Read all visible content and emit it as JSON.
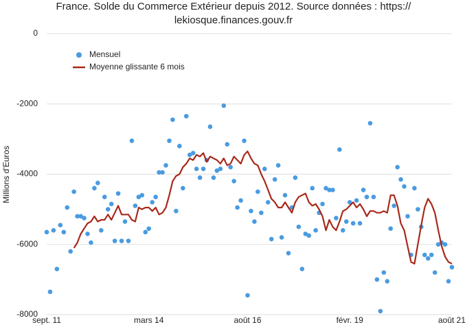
{
  "chart_data": {
    "type": "line",
    "title": "France. Solde du Commerce Extérieur depuis 2012. Source données : https:// lekiosque.finances.gouv.fr",
    "y_label": "Millions d'Euros",
    "categories": [
      "sept. 11",
      null,
      null,
      null,
      null,
      null,
      null,
      null,
      null,
      null,
      null,
      null,
      null,
      null,
      null,
      null,
      null,
      null,
      null,
      null,
      null,
      null,
      null,
      null,
      null,
      null,
      null,
      null,
      null,
      null,
      "mars 14",
      null,
      null,
      null,
      null,
      null,
      null,
      null,
      null,
      null,
      null,
      null,
      null,
      null,
      null,
      null,
      null,
      null,
      null,
      null,
      null,
      null,
      null,
      null,
      null,
      null,
      null,
      null,
      null,
      "août 16",
      null,
      null,
      null,
      null,
      null,
      null,
      null,
      null,
      null,
      null,
      null,
      null,
      null,
      null,
      null,
      null,
      null,
      null,
      null,
      null,
      null,
      null,
      null,
      null,
      null,
      null,
      null,
      null,
      null,
      "févr. 19",
      null,
      null,
      null,
      null,
      null,
      null,
      null,
      null,
      null,
      null,
      null,
      null,
      null,
      null,
      null,
      null,
      null,
      null,
      null,
      null,
      null,
      null,
      null,
      null,
      null,
      null,
      null,
      null,
      null,
      "août 21"
    ],
    "series": [
      {
        "name": "Mensuel",
        "color": "#4a9be0",
        "style": "dots",
        "values": [
          -5650,
          -7350,
          -5600,
          -6700,
          -5450,
          -5650,
          -4950,
          -6200,
          -4500,
          -5200,
          -5200,
          -5250,
          -5700,
          -5950,
          -4400,
          -4250,
          -5600,
          -4650,
          -5000,
          -4850,
          -5900,
          -4550,
          -5900,
          -5350,
          -5900,
          -3050,
          -4900,
          -4650,
          -4600,
          -5650,
          -5550,
          -4800,
          -4650,
          -3950,
          -3950,
          -3750,
          -3050,
          -2450,
          -5050,
          -3200,
          -4400,
          -2350,
          -3450,
          -3400,
          -3850,
          -4100,
          -3850,
          -3600,
          -2650,
          -4100,
          -3900,
          -3850,
          -2050,
          -3150,
          -3800,
          -4200,
          -4950,
          -4750,
          -3050,
          -7450,
          -5050,
          -5350,
          -4500,
          -5100,
          -3850,
          -4800,
          -5850,
          -4150,
          -3750,
          -5800,
          -4600,
          -6250,
          -4950,
          -4100,
          -5500,
          -6700,
          -5700,
          -5750,
          -4400,
          -5600,
          -5100,
          -4850,
          -4400,
          -4450,
          -4450,
          -5250,
          -3300,
          -5600,
          -5350,
          -4800,
          -5400,
          -4750,
          -5400,
          -4450,
          -4650,
          -2550,
          -4650,
          -7000,
          -7900,
          -6800,
          -7050,
          -5550,
          -4900,
          -3800,
          -4150,
          -4350,
          -5200,
          -6300,
          -4400,
          -5000,
          -5500,
          -6300,
          -6400,
          -6300,
          -6800,
          -6000,
          -5950,
          -6000,
          -7050,
          -6650
        ]
      },
      {
        "name": "Moyenne glissante 6 mois",
        "color": "#a8281a",
        "style": "line",
        "values": [
          null,
          null,
          null,
          null,
          null,
          null,
          null,
          null,
          -6100,
          -5950,
          -5700,
          -5550,
          -5400,
          -5350,
          -5200,
          -5350,
          -5300,
          -5300,
          -5150,
          -5300,
          -5100,
          -4900,
          -5150,
          -5150,
          -5150,
          -5300,
          -5350,
          -4950,
          -5000,
          -4950,
          -4950,
          -5050,
          -4950,
          -5150,
          -5100,
          -4950,
          -4600,
          -4200,
          -4050,
          -4000,
          -3800,
          -3700,
          -3550,
          -3600,
          -3450,
          -3500,
          -3400,
          -3650,
          -3500,
          -3550,
          -3600,
          -3700,
          -3550,
          -3750,
          -3700,
          -3500,
          -3600,
          -3700,
          -3450,
          -3350,
          -3550,
          -3700,
          -3750,
          -4000,
          -4200,
          -4450,
          -4700,
          -4800,
          -4950,
          -4950,
          -4800,
          -4950,
          -5100,
          -4800,
          -4650,
          -4600,
          -4550,
          -4800,
          -4900,
          -4850,
          -5000,
          -5200,
          -5600,
          -5300,
          -5500,
          -5600,
          -5350,
          -5050,
          -5000,
          -4900,
          -4800,
          -4950,
          -4850,
          -5000,
          -5200,
          -5050,
          -5050,
          -5100,
          -5100,
          -5050,
          -5100,
          -4600,
          -4600,
          -4900,
          -5400,
          -5600,
          -6050,
          -6500,
          -6550,
          -6000,
          -5450,
          -4950,
          -4700,
          -4850,
          -5100,
          -5600,
          -6050,
          -6350,
          -6500,
          -6550
        ]
      }
    ],
    "ylim": [
      -8000,
      0
    ],
    "yticks": [
      0,
      -2000,
      -4000,
      -6000,
      -8000
    ],
    "grid": true,
    "legend": "top-left"
  }
}
